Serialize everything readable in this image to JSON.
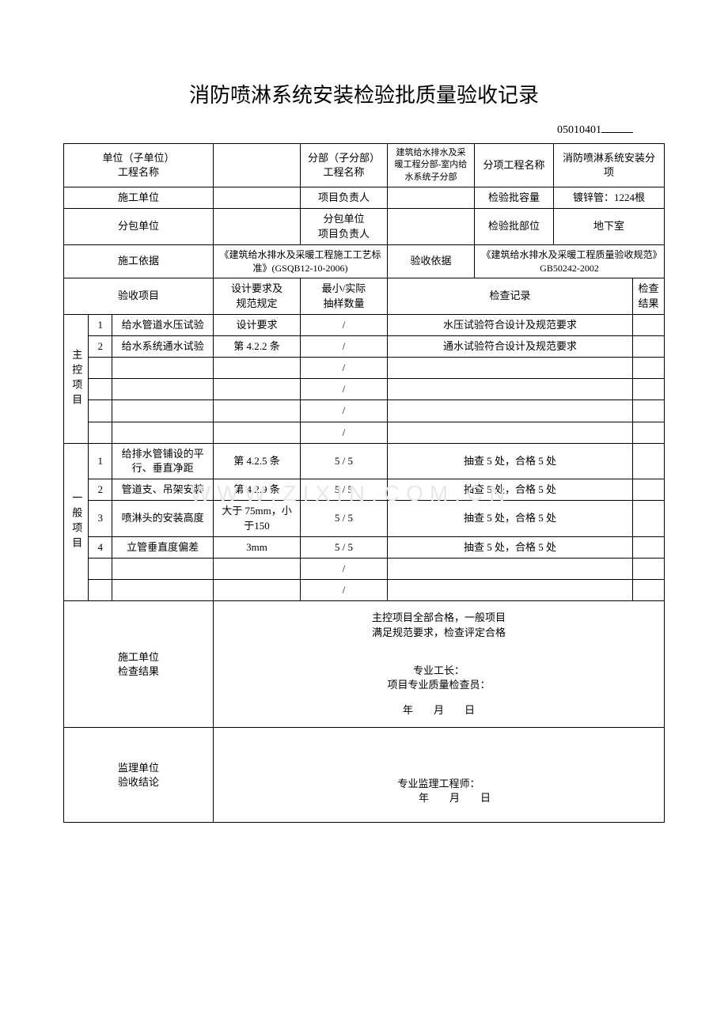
{
  "title": "消防喷淋系统安装检验批质量验收记录",
  "doc_number": "05010401",
  "watermark": "WWW.ZIXIN.COM.CN",
  "header": {
    "unit_project_label": "单位（子单位）\n工程名称",
    "unit_project_value": "",
    "sub_project_label": "分部（子分部）\n工程名称",
    "sub_project_value": "建筑给水排水及采暖工程分部-室内给水系统子分部",
    "item_project_label": "分项工程名称",
    "item_project_value": "消防喷淋系统安装分项",
    "construction_unit_label": "施工单位",
    "construction_unit_value": "",
    "project_leader_label": "项目负责人",
    "project_leader_value": "",
    "batch_capacity_label": "检验批容量",
    "batch_capacity_value": "镀锌管：1224根",
    "subcontract_unit_label": "分包单位",
    "subcontract_unit_value": "",
    "subcontract_leader_label": "分包单位\n项目负责人",
    "subcontract_leader_value": "",
    "batch_location_label": "检验批部位",
    "batch_location_value": "地下室",
    "construction_basis_label": "施工依据",
    "construction_basis_value": "《建筑给水排水及采暖工程施工工艺标准》(GSQB12-10-2006)",
    "acceptance_basis_label": "验收依据",
    "acceptance_basis_value": "《建筑给水排水及采暖工程质量验收规范》GB50242-2002"
  },
  "columns": {
    "acceptance_item": "验收项目",
    "design_req": "设计要求及\n规范规定",
    "sample_qty": "最小/实际\n抽样数量",
    "check_record": "检查记录",
    "check_result": "检查\n结果"
  },
  "groups": {
    "main_control": "主控项目",
    "general": "一般项目"
  },
  "main_control_rows": [
    {
      "no": "1",
      "item": "给水管道水压试验",
      "req": "设计要求",
      "qty": "/",
      "record": "水压试验符合设计及规范要求",
      "result": ""
    },
    {
      "no": "2",
      "item": "给水系统通水试验",
      "req": "第 4.2.2 条",
      "qty": "/",
      "record": "通水试验符合设计及规范要求",
      "result": ""
    },
    {
      "no": "",
      "item": "",
      "req": "",
      "qty": "/",
      "record": "",
      "result": ""
    },
    {
      "no": "",
      "item": "",
      "req": "",
      "qty": "/",
      "record": "",
      "result": ""
    },
    {
      "no": "",
      "item": "",
      "req": "",
      "qty": "/",
      "record": "",
      "result": ""
    },
    {
      "no": "",
      "item": "",
      "req": "",
      "qty": "/",
      "record": "",
      "result": ""
    }
  ],
  "general_rows": [
    {
      "no": "1",
      "item": "给排水管铺设的平行、垂直净距",
      "req": "第 4.2.5 条",
      "qty": "5 / 5",
      "record": "抽查 5 处，合格 5 处",
      "result": ""
    },
    {
      "no": "2",
      "item": "管道支、吊架安装",
      "req": "第 4.2.9 条",
      "qty": "5 / 5",
      "record": "抽查 5 处，合格 5 处",
      "result": ""
    },
    {
      "no": "3",
      "item": "喷淋头的安装高度",
      "req": "大于 75mm，小于150",
      "qty": "5 / 5",
      "record": "抽查 5 处，合格 5 处",
      "result": ""
    },
    {
      "no": "4",
      "item": "立管垂直度偏差",
      "req": "3mm",
      "qty": "5 / 5",
      "record": "抽查 5 处，合格 5 处",
      "result": ""
    },
    {
      "no": "",
      "item": "",
      "req": "",
      "qty": "/",
      "record": "",
      "result": ""
    },
    {
      "no": "",
      "item": "",
      "req": "",
      "qty": "/",
      "record": "",
      "result": ""
    }
  ],
  "footer": {
    "construction_check_label": "施工单位\n检查结果",
    "construction_check_text1": "主控项目全部合格，一般项目",
    "construction_check_text2": "满足规范要求，检查评定合格",
    "foreman_label": "专业工长：",
    "quality_inspector_label": "项目专业质量检查员：",
    "date_line": "年　　月　　日",
    "supervision_label": "监理单位\n验收结论",
    "supervision_engineer_label": "专业监理工程师：",
    "supervision_date_line": "年　　月　　日"
  }
}
